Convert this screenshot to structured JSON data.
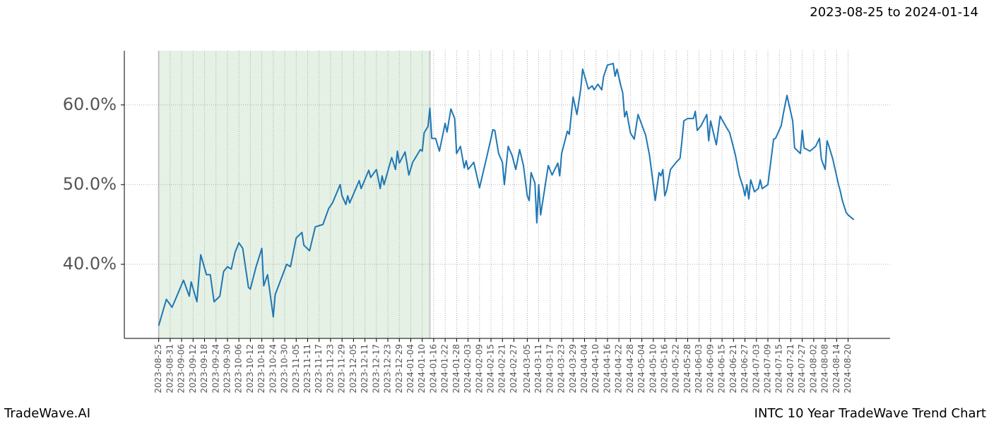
{
  "chart_data": {
    "type": "line",
    "title": "2023-08-25 to 2024-01-14",
    "footer_left": "TradeWave.AI",
    "footer_right": "INTC 10 Year TradeWave Trend Chart",
    "color": "#1f77b4",
    "highlight": {
      "start": "2023-08-25",
      "end": "2024-01-14",
      "color": "#e5f1e5"
    },
    "grid": true,
    "xlim": [
      "2023-08-07",
      "2024-09-11"
    ],
    "ylim": [
      30.7,
      66.8
    ],
    "yticks": [
      {
        "value": 40,
        "label": "40.0%"
      },
      {
        "value": 50,
        "label": "50.0%"
      },
      {
        "value": 60,
        "label": "60.0%"
      }
    ],
    "xticks": [
      "2023-08-25",
      "2023-08-31",
      "2023-09-06",
      "2023-09-12",
      "2023-09-18",
      "2023-09-24",
      "2023-09-30",
      "2023-10-06",
      "2023-10-12",
      "2023-10-18",
      "2023-10-24",
      "2023-10-30",
      "2023-11-05",
      "2023-11-11",
      "2023-11-17",
      "2023-11-23",
      "2023-11-29",
      "2023-12-05",
      "2023-12-11",
      "2023-12-17",
      "2023-12-23",
      "2023-12-29",
      "2024-01-04",
      "2024-01-10",
      "2024-01-16",
      "2024-01-22",
      "2024-01-28",
      "2024-02-03",
      "2024-02-09",
      "2024-02-15",
      "2024-02-21",
      "2024-02-27",
      "2024-03-05",
      "2024-03-11",
      "2024-03-17",
      "2024-03-23",
      "2024-03-29",
      "2024-04-04",
      "2024-04-10",
      "2024-04-16",
      "2024-04-22",
      "2024-04-28",
      "2024-05-04",
      "2024-05-10",
      "2024-05-16",
      "2024-05-22",
      "2024-05-28",
      "2024-06-03",
      "2024-06-09",
      "2024-06-15",
      "2024-06-21",
      "2024-06-27",
      "2024-07-03",
      "2024-07-09",
      "2024-07-15",
      "2024-07-21",
      "2024-07-27",
      "2024-08-02",
      "2024-08-08",
      "2024-08-14",
      "2024-08-20"
    ],
    "x": [
      "2023-08-25",
      "2023-08-29",
      "2023-09-01",
      "2023-09-07",
      "2023-09-10",
      "2023-09-11",
      "2023-09-14",
      "2023-09-16",
      "2023-09-19",
      "2023-09-21",
      "2023-09-23",
      "2023-09-26",
      "2023-09-28",
      "2023-09-30",
      "2023-10-02",
      "2023-10-04",
      "2023-10-06",
      "2023-10-08",
      "2023-10-11",
      "2023-10-12",
      "2023-10-15",
      "2023-10-18",
      "2023-10-19",
      "2023-10-21",
      "2023-10-24",
      "2023-10-25",
      "2023-10-28",
      "2023-10-31",
      "2023-11-02",
      "2023-11-05",
      "2023-11-08",
      "2023-11-09",
      "2023-11-12",
      "2023-11-15",
      "2023-11-19",
      "2023-11-22",
      "2023-11-24",
      "2023-11-28",
      "2023-11-29",
      "2023-12-01",
      "2023-12-02",
      "2023-12-03",
      "2023-12-08",
      "2023-12-09",
      "2023-12-13",
      "2023-12-14",
      "2023-12-17",
      "2023-12-19",
      "2023-12-20",
      "2023-12-21",
      "2023-12-25",
      "2023-12-27",
      "2023-12-28",
      "2023-12-29",
      "2024-01-01",
      "2024-01-03",
      "2024-01-05",
      "2024-01-09",
      "2024-01-10",
      "2024-01-11",
      "2024-01-13",
      "2024-01-14",
      "2024-01-15",
      "2024-01-17",
      "2024-01-19",
      "2024-01-22",
      "2024-01-23",
      "2024-01-25",
      "2024-01-27",
      "2024-01-28",
      "2024-01-30",
      "2024-02-01",
      "2024-02-02",
      "2024-02-03",
      "2024-02-06",
      "2024-02-09",
      "2024-02-13",
      "2024-02-15",
      "2024-02-16",
      "2024-02-17",
      "2024-02-19",
      "2024-02-21",
      "2024-02-22",
      "2024-02-24",
      "2024-02-26",
      "2024-02-28",
      "2024-03-01",
      "2024-03-03",
      "2024-03-05",
      "2024-03-06",
      "2024-03-07",
      "2024-03-09",
      "2024-03-10",
      "2024-03-11",
      "2024-03-12",
      "2024-03-16",
      "2024-03-18",
      "2024-03-21",
      "2024-03-22",
      "2024-03-23",
      "2024-03-26",
      "2024-03-27",
      "2024-03-29",
      "2024-03-31",
      "2024-04-02",
      "2024-04-03",
      "2024-04-06",
      "2024-04-08",
      "2024-04-09",
      "2024-04-11",
      "2024-04-13",
      "2024-04-14",
      "2024-04-16",
      "2024-04-19",
      "2024-04-20",
      "2024-04-21",
      "2024-04-23",
      "2024-04-24",
      "2024-04-25",
      "2024-04-26",
      "2024-04-28",
      "2024-04-30",
      "2024-05-02",
      "2024-05-06",
      "2024-05-08",
      "2024-05-10",
      "2024-05-11",
      "2024-05-13",
      "2024-05-14",
      "2024-05-15",
      "2024-05-16",
      "2024-05-17",
      "2024-05-19",
      "2024-05-22",
      "2024-05-24",
      "2024-05-25",
      "2024-05-26",
      "2024-05-28",
      "2024-05-31",
      "2024-06-01",
      "2024-06-02",
      "2024-06-04",
      "2024-06-07",
      "2024-06-08",
      "2024-06-09",
      "2024-06-12",
      "2024-06-14",
      "2024-06-17",
      "2024-06-19",
      "2024-06-22",
      "2024-06-24",
      "2024-06-26",
      "2024-06-27",
      "2024-06-28",
      "2024-06-29",
      "2024-06-30",
      "2024-07-02",
      "2024-07-04",
      "2024-07-05",
      "2024-07-06",
      "2024-07-09",
      "2024-07-10",
      "2024-07-12",
      "2024-07-13",
      "2024-07-16",
      "2024-07-17",
      "2024-07-19",
      "2024-07-20",
      "2024-07-22",
      "2024-07-23",
      "2024-07-26",
      "2024-07-27",
      "2024-07-28",
      "2024-07-31",
      "2024-08-03",
      "2024-08-05",
      "2024-08-06",
      "2024-08-08",
      "2024-08-09",
      "2024-08-10",
      "2024-08-12",
      "2024-08-15",
      "2024-08-16",
      "2024-08-17",
      "2024-08-19",
      "2024-08-20",
      "2024-08-23"
    ],
    "values": [
      32.3,
      35.6,
      34.6,
      38.0,
      36.0,
      37.8,
      35.3,
      41.2,
      38.7,
      38.7,
      35.3,
      36.0,
      39.1,
      39.7,
      39.4,
      41.5,
      42.7,
      42.0,
      37.1,
      36.9,
      39.7,
      42.0,
      37.3,
      38.7,
      33.4,
      36.2,
      38.1,
      40.0,
      39.7,
      43.3,
      44.0,
      42.4,
      41.7,
      44.7,
      45.0,
      47.0,
      47.7,
      50.0,
      48.6,
      47.5,
      48.6,
      47.7,
      50.5,
      49.5,
      51.8,
      50.9,
      51.9,
      49.5,
      51.1,
      50.0,
      53.4,
      51.9,
      54.2,
      52.7,
      54.1,
      51.2,
      52.8,
      54.4,
      54.2,
      56.5,
      57.3,
      59.6,
      55.8,
      55.8,
      54.2,
      57.7,
      56.6,
      59.5,
      58.3,
      53.9,
      54.8,
      52.1,
      53.0,
      51.9,
      52.8,
      49.6,
      53.7,
      55.8,
      56.9,
      56.8,
      53.9,
      52.8,
      50.0,
      54.8,
      53.7,
      51.9,
      54.4,
      52.4,
      48.6,
      48.0,
      51.5,
      50.2,
      45.2,
      50.0,
      46.2,
      52.4,
      51.2,
      52.7,
      51.1,
      53.9,
      56.7,
      56.3,
      61.0,
      58.8,
      62.0,
      64.5,
      62.0,
      62.4,
      61.9,
      62.6,
      61.9,
      63.6,
      65.0,
      65.2,
      63.6,
      64.5,
      62.4,
      61.5,
      58.5,
      59.2,
      56.5,
      55.7,
      58.8,
      56.2,
      53.7,
      50.0,
      48.0,
      51.5,
      51.1,
      51.9,
      48.6,
      49.3,
      51.9,
      52.8,
      53.3,
      55.5,
      58.0,
      58.3,
      58.3,
      59.2,
      56.8,
      57.4,
      58.8,
      55.5,
      58.0,
      55.0,
      58.6,
      57.3,
      56.5,
      53.7,
      51.2,
      49.7,
      48.6,
      50.0,
      48.2,
      50.6,
      49.1,
      49.5,
      50.6,
      49.5,
      50.0,
      51.9,
      55.7,
      55.8,
      57.4,
      58.8,
      61.2,
      60.1,
      58.0,
      54.6,
      53.9,
      56.8,
      54.6,
      54.2,
      54.8,
      55.8,
      53.2,
      51.9,
      55.5,
      54.8,
      53.2,
      50.0,
      49.1,
      48.0,
      46.5,
      46.2,
      45.6
    ]
  }
}
